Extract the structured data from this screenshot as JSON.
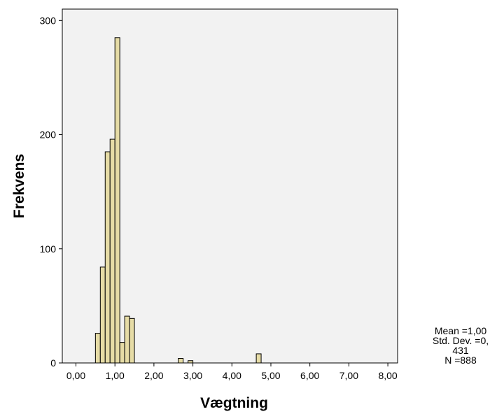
{
  "chart_data": {
    "type": "bar",
    "subtype": "histogram",
    "xlabel": "Vægtning",
    "ylabel": "Frekvens",
    "xlim": [
      -0.35,
      8.25
    ],
    "ylim": [
      0,
      310
    ],
    "x_ticks": [
      {
        "value": 0,
        "label": "0,00"
      },
      {
        "value": 1,
        "label": "1,00"
      },
      {
        "value": 2,
        "label": "2,00"
      },
      {
        "value": 3,
        "label": "3,00"
      },
      {
        "value": 4,
        "label": "4,00"
      },
      {
        "value": 5,
        "label": "5,00"
      },
      {
        "value": 6,
        "label": "6,00"
      },
      {
        "value": 7,
        "label": "7,00"
      },
      {
        "value": 8,
        "label": "8,00"
      }
    ],
    "y_ticks": [
      {
        "value": 0,
        "label": "0"
      },
      {
        "value": 100,
        "label": "100"
      },
      {
        "value": 200,
        "label": "200"
      },
      {
        "value": 300,
        "label": "300"
      }
    ],
    "bin_width": 0.125,
    "bins": [
      {
        "start": 0.5,
        "count": 26
      },
      {
        "start": 0.625,
        "count": 84
      },
      {
        "start": 0.75,
        "count": 185
      },
      {
        "start": 0.875,
        "count": 196
      },
      {
        "start": 1.0,
        "count": 285
      },
      {
        "start": 1.125,
        "count": 18
      },
      {
        "start": 1.25,
        "count": 41
      },
      {
        "start": 1.375,
        "count": 39
      },
      {
        "start": 2.625,
        "count": 4
      },
      {
        "start": 2.875,
        "count": 2
      },
      {
        "start": 4.625,
        "count": 8
      }
    ],
    "bar_color": "#e6dca6",
    "bar_edge_color": "#000000",
    "plot_background": "#f2f2f2",
    "grid": false,
    "legend": "none",
    "stats": {
      "lines": [
        "Mean =1,00",
        "Std. Dev. =0,",
        "431",
        "N =888"
      ]
    }
  }
}
